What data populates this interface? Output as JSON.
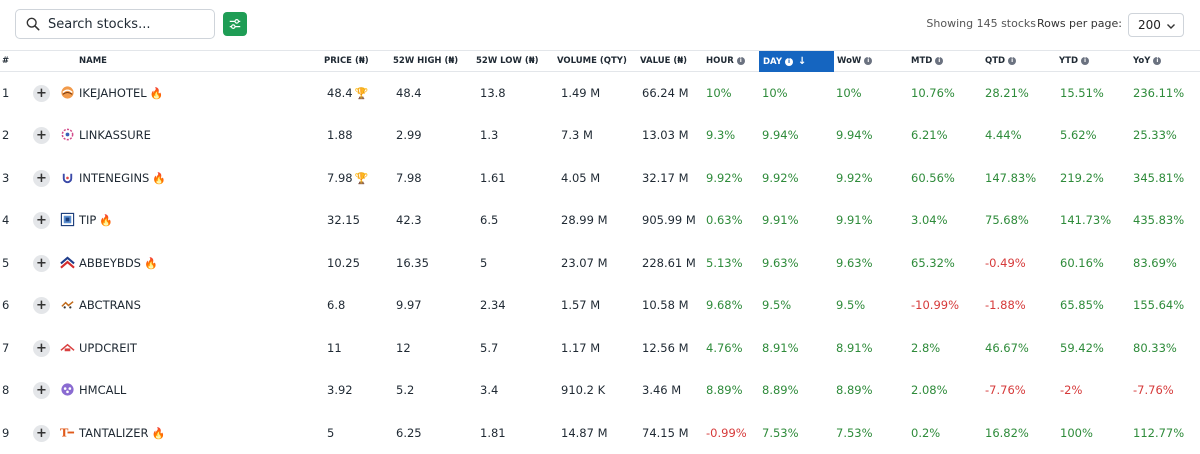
{
  "search": {
    "placeholder": "Search stocks..."
  },
  "toolbar": {
    "showing_text": "Showing 145 stocks",
    "rows_label": "Rows per page:",
    "rows_value": "200"
  },
  "columns": {
    "num": "#",
    "name": "NAME",
    "price": "PRICE (₦)",
    "high52": "52W HIGH (₦)",
    "low52": "52W LOW (₦)",
    "volume": "VOLUME (QTY)",
    "value": "VALUE (₦)",
    "hour": "HOUR",
    "day": "DAY",
    "wow": "WoW",
    "mtd": "MTD",
    "qtd": "QTD",
    "ytd": "YTD",
    "yoy": "YoY"
  },
  "colors": {
    "positive": "#2e8b3a",
    "negative": "#d63a3a",
    "accent": "#1565c0",
    "filter": "#1f9d55"
  },
  "rows": [
    {
      "num": "1",
      "name": "IKEJAHOTEL",
      "logo": "ikejahotel-logo-icon",
      "fire": true,
      "price": "48.4",
      "trophy": true,
      "high52": "48.4",
      "low52": "13.8",
      "volume": "1.49 M",
      "value": "66.24 M",
      "hour": "10%",
      "day": "10%",
      "wow": "10%",
      "mtd": "10.76%",
      "qtd": "28.21%",
      "ytd": "15.51%",
      "yoy": "236.11%"
    },
    {
      "num": "2",
      "name": "LINKASSURE",
      "logo": "linkassure-logo-icon",
      "fire": false,
      "price": "1.88",
      "trophy": false,
      "high52": "2.99",
      "low52": "1.3",
      "volume": "7.3 M",
      "value": "13.03 M",
      "hour": "9.3%",
      "day": "9.94%",
      "wow": "9.94%",
      "mtd": "6.21%",
      "qtd": "4.44%",
      "ytd": "5.62%",
      "yoy": "25.33%"
    },
    {
      "num": "3",
      "name": "INTENEGINS",
      "logo": "intenegins-logo-icon",
      "fire": true,
      "price": "7.98",
      "trophy": true,
      "high52": "7.98",
      "low52": "1.61",
      "volume": "4.05 M",
      "value": "32.17 M",
      "hour": "9.92%",
      "day": "9.92%",
      "wow": "9.92%",
      "mtd": "60.56%",
      "qtd": "147.83%",
      "ytd": "219.2%",
      "yoy": "345.81%"
    },
    {
      "num": "4",
      "name": "TIP",
      "logo": "tip-logo-icon",
      "fire": true,
      "price": "32.15",
      "trophy": false,
      "high52": "42.3",
      "low52": "6.5",
      "volume": "28.99 M",
      "value": "905.99 M",
      "hour": "0.63%",
      "day": "9.91%",
      "wow": "9.91%",
      "mtd": "3.04%",
      "qtd": "75.68%",
      "ytd": "141.73%",
      "yoy": "435.83%"
    },
    {
      "num": "5",
      "name": "ABBEYBDS",
      "logo": "abbeybds-logo-icon",
      "fire": true,
      "price": "10.25",
      "trophy": false,
      "high52": "16.35",
      "low52": "5",
      "volume": "23.07 M",
      "value": "228.61 M",
      "hour": "5.13%",
      "day": "9.63%",
      "wow": "9.63%",
      "mtd": "65.32%",
      "qtd": "-0.49%",
      "ytd": "60.16%",
      "yoy": "83.69%"
    },
    {
      "num": "6",
      "name": "ABCTRANS",
      "logo": "abctrans-logo-icon",
      "fire": false,
      "price": "6.8",
      "trophy": false,
      "high52": "9.97",
      "low52": "2.34",
      "volume": "1.57 M",
      "value": "10.58 M",
      "hour": "9.68%",
      "day": "9.5%",
      "wow": "9.5%",
      "mtd": "-10.99%",
      "qtd": "-1.88%",
      "ytd": "65.85%",
      "yoy": "155.64%"
    },
    {
      "num": "7",
      "name": "UPDCREIT",
      "logo": "updcreit-logo-icon",
      "fire": false,
      "price": "11",
      "trophy": false,
      "high52": "12",
      "low52": "5.7",
      "volume": "1.17 M",
      "value": "12.56 M",
      "hour": "4.76%",
      "day": "8.91%",
      "wow": "8.91%",
      "mtd": "2.8%",
      "qtd": "46.67%",
      "ytd": "59.42%",
      "yoy": "80.33%"
    },
    {
      "num": "8",
      "name": "HMCALL",
      "logo": "hmcall-logo-icon",
      "fire": false,
      "price": "3.92",
      "trophy": false,
      "high52": "5.2",
      "low52": "3.4",
      "volume": "910.2 K",
      "value": "3.46 M",
      "hour": "8.89%",
      "day": "8.89%",
      "wow": "8.89%",
      "mtd": "2.08%",
      "qtd": "-7.76%",
      "ytd": "-2%",
      "yoy": "-7.76%"
    },
    {
      "num": "9",
      "name": "TANTALIZER",
      "logo": "tantalizer-logo-icon",
      "fire": true,
      "price": "5",
      "trophy": false,
      "high52": "6.25",
      "low52": "1.81",
      "volume": "14.87 M",
      "value": "74.15 M",
      "hour": "-0.99%",
      "day": "7.53%",
      "wow": "7.53%",
      "mtd": "0.2%",
      "qtd": "16.82%",
      "ytd": "100%",
      "yoy": "112.77%"
    }
  ]
}
